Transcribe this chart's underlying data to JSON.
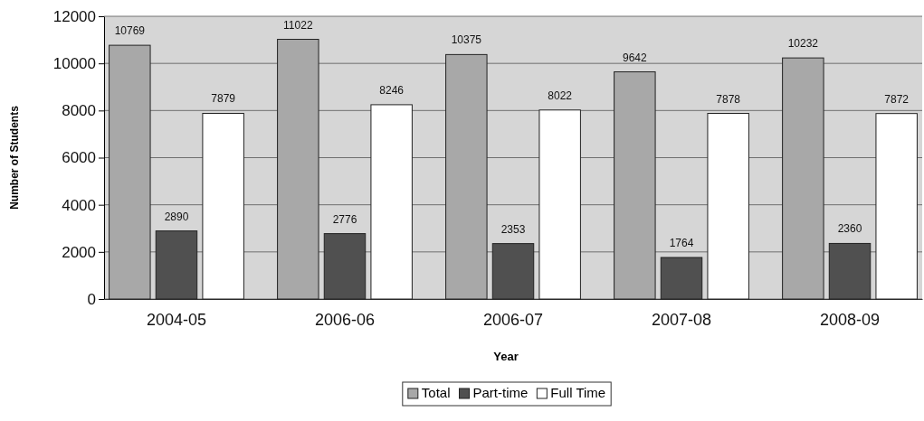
{
  "chart_data": {
    "type": "bar",
    "xlabel": "Year",
    "ylabel": "Number of Students",
    "categories": [
      "2004-05",
      "2006-06",
      "2006-07",
      "2007-08",
      "2008-09"
    ],
    "series": [
      {
        "name": "Total",
        "color": "#a8a8a8",
        "values": [
          10769,
          11022,
          10375,
          9642,
          10232
        ]
      },
      {
        "name": "Part-time",
        "color": "#505050",
        "values": [
          2890,
          2776,
          2353,
          1764,
          2360
        ]
      },
      {
        "name": "Full Time",
        "color": "#ffffff",
        "values": [
          7879,
          8246,
          8022,
          7878,
          7872
        ]
      }
    ],
    "ylim": [
      0,
      12000
    ],
    "yticks": [
      0,
      2000,
      4000,
      6000,
      8000,
      10000,
      12000
    ],
    "grid": "y",
    "legend": "bottom",
    "data_labels": true
  }
}
